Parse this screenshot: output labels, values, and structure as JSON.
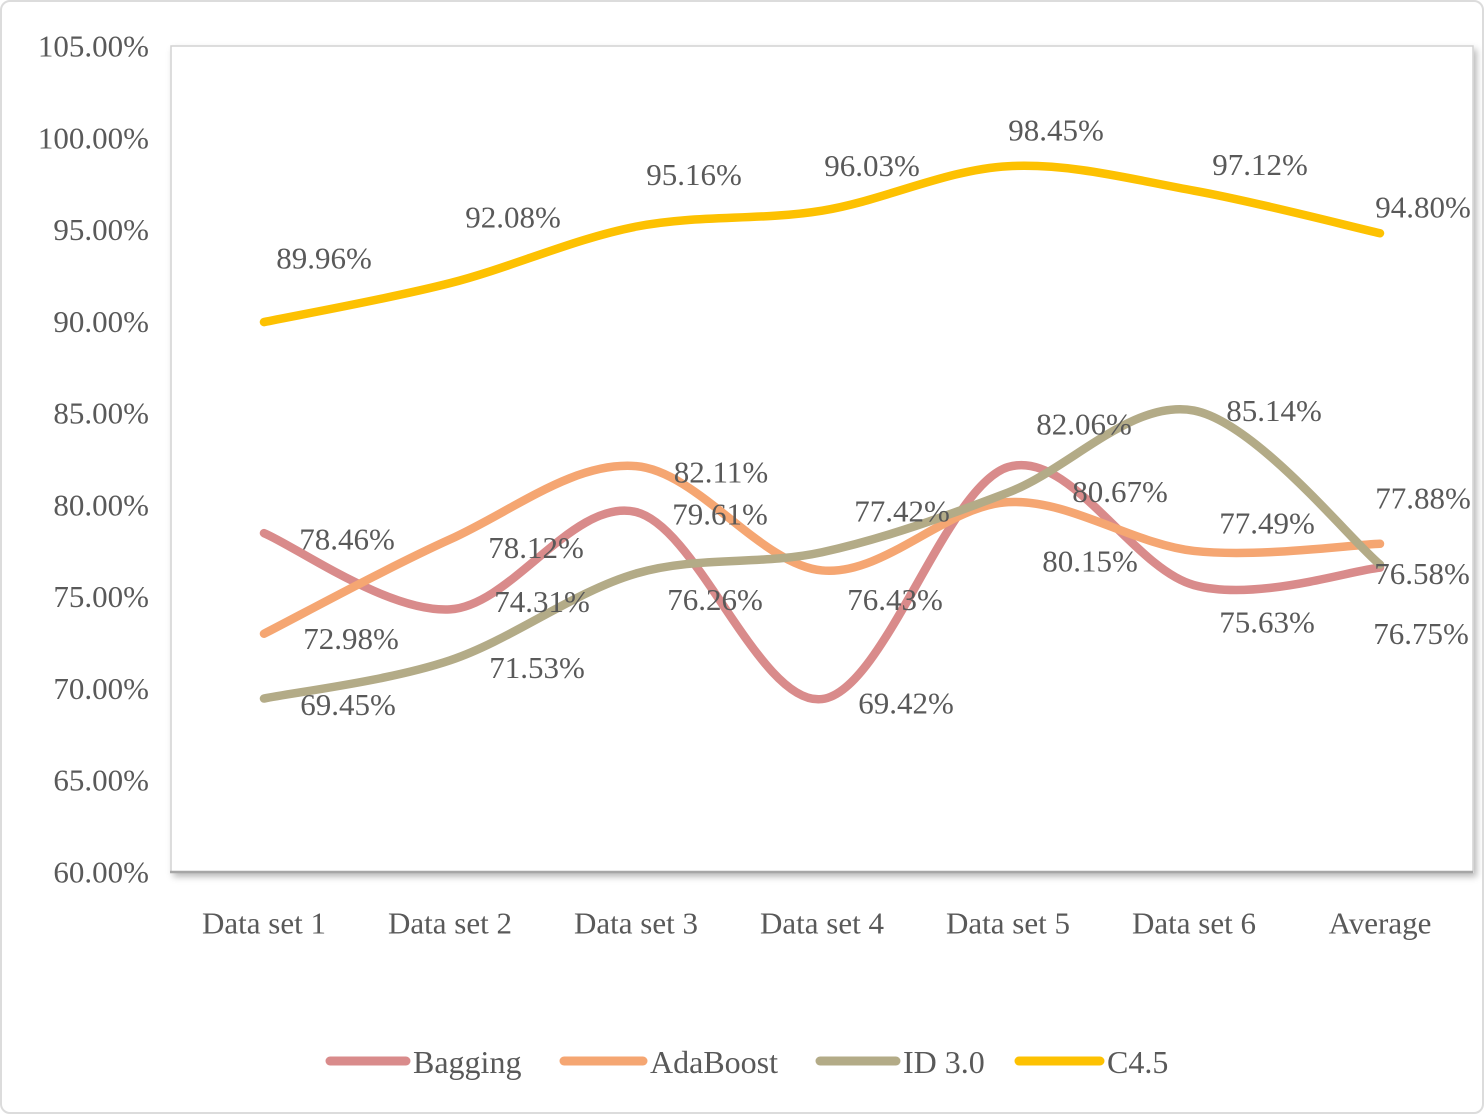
{
  "chart_data": {
    "type": "line",
    "title": "",
    "smooth": true,
    "grid": false,
    "categories": [
      "Data set 1",
      "Data set 2",
      "Data set 3",
      "Data set 4",
      "Data set 5",
      "Data set 6",
      "Average"
    ],
    "y_axis": {
      "min": 60,
      "max": 105,
      "step": 5,
      "tick_values": [
        105,
        100,
        95,
        90,
        85,
        80,
        75,
        70,
        65,
        60
      ],
      "tick_labels": [
        "105.00%",
        "100.00%",
        "95.00%",
        "90.00%",
        "85.00%",
        "80.00%",
        "75.00%",
        "70.00%",
        "65.00%",
        "60.00%"
      ]
    },
    "series": [
      {
        "name": "Bagging",
        "color": "#d98b8b",
        "values": [
          78.46,
          74.31,
          79.61,
          69.42,
          82.06,
          75.63,
          76.58
        ],
        "labels": [
          "78.46%",
          "74.31%",
          "79.61%",
          "69.42%",
          "82.06%",
          "75.63%",
          "76.58%"
        ],
        "label_offsets": [
          [
            83,
            6
          ],
          [
            92,
            -8
          ],
          [
            84,
            2
          ],
          [
            84,
            4
          ],
          [
            76,
            -43
          ],
          [
            73,
            37
          ],
          [
            42,
            6
          ]
        ]
      },
      {
        "name": "AdaBoost",
        "color": "#f5a672",
        "values": [
          72.98,
          78.12,
          82.11,
          76.43,
          80.15,
          77.49,
          77.88
        ],
        "labels": [
          "72.98%",
          "78.12%",
          "82.11%",
          "76.43%",
          "80.15%",
          "77.49%",
          "77.88%"
        ],
        "label_offsets": [
          [
            87,
            5
          ],
          [
            86,
            8
          ],
          [
            85,
            6
          ],
          [
            73,
            29
          ],
          [
            82,
            59
          ],
          [
            73,
            -28
          ],
          [
            43,
            -46
          ]
        ]
      },
      {
        "name": "ID 3.0",
        "color": "#b3ab87",
        "values": [
          69.45,
          71.53,
          76.26,
          77.42,
          80.67,
          85.14,
          76.75
        ],
        "labels": [
          "69.45%",
          "71.53%",
          "76.26%",
          "77.42%",
          "80.67%",
          "85.14%",
          "76.75%"
        ],
        "label_offsets": [
          [
            84,
            6
          ],
          [
            87,
            7
          ],
          [
            79,
            26
          ],
          [
            80,
            -41
          ],
          [
            112,
            -1
          ],
          [
            80,
            0
          ],
          [
            41,
            69
          ]
        ]
      },
      {
        "name": "C4.5",
        "color": "#fdc101",
        "values": [
          89.96,
          92.08,
          95.16,
          96.03,
          98.45,
          97.12,
          94.8
        ],
        "labels": [
          "89.96%",
          "92.08%",
          "95.16%",
          "96.03%",
          "98.45%",
          "97.12%",
          "94.80%"
        ],
        "label_offsets": [
          [
            60,
            -64
          ],
          [
            63,
            -66
          ],
          [
            58,
            -52
          ],
          [
            50,
            -45
          ],
          [
            48,
            -36
          ],
          [
            66,
            -26
          ],
          [
            43,
            -26
          ]
        ]
      }
    ],
    "legend": {
      "position": "bottom",
      "entries": [
        "Bagging",
        "AdaBoost",
        "ID 3.0",
        "C4.5"
      ]
    }
  },
  "style": {
    "text_color": "#595959",
    "axis_line_color": "#a6a6a6",
    "plot_border_color": "#d2d2d2",
    "frame_border_color": "#dcdcdc"
  }
}
